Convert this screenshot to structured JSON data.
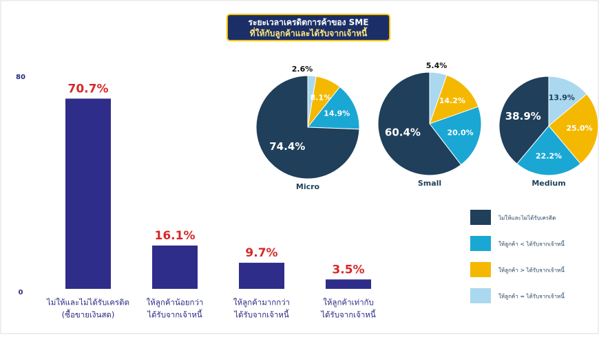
{
  "chart_data": [
    {
      "type": "bar",
      "title": [
        "ระยะเวลาเครดิตการค้าของ SME",
        "ที่ให้กับลูกค้าและได้รับจากเจ้าหนี้"
      ],
      "categories": [
        [
          "ไม่ให้และไม่ได้รับเครดิต",
          "(ซื้อขายเงินสด)"
        ],
        [
          "ให้ลูกค้าน้อยกว่า",
          "ได้รับจากเจ้าหนี้"
        ],
        [
          "ให้ลูกค้ามากกว่า",
          "ได้รับจากเจ้าหนี้"
        ],
        [
          "ให้ลูกค้าเท่ากับ",
          "ได้รับจากเจ้าหนี้"
        ]
      ],
      "values": [
        70.7,
        16.1,
        9.7,
        3.5
      ],
      "value_labels": [
        "70.7%",
        "16.1%",
        "9.7%",
        "3.5%"
      ],
      "color": "#2e2d8a",
      "label_color": "#d62828",
      "ylim": [
        0,
        80
      ],
      "yticks": [
        0,
        80
      ]
    },
    {
      "type": "pie",
      "categories": [
        "ไม่ให้และไม่ได้รับเครดิต",
        "ให้ลูกค้า < ได้รับจากเจ้าหนี้",
        "ให้ลูกค้า > ได้รับจากเจ้าหนี้",
        "ให้ลูกค้า = ได้รับจากเจ้าหนี้"
      ],
      "colors": [
        "#1f3f5b",
        "#1aa7d4",
        "#f5b800",
        "#a9d8ef"
      ],
      "series": [
        {
          "name": "Micro",
          "values": [
            74.4,
            14.9,
            8.1,
            2.6
          ],
          "value_labels": [
            "74.4%",
            "14.9%",
            "8.1%",
            "2.6%"
          ]
        },
        {
          "name": "Small",
          "values": [
            60.4,
            20.0,
            14.2,
            5.4
          ],
          "value_labels": [
            "60.4%",
            "20.0%",
            "14.2%",
            "5.4%"
          ]
        },
        {
          "name": "Medium",
          "values": [
            38.9,
            22.2,
            25.0,
            13.9
          ],
          "value_labels": [
            "38.9%",
            "22.2%",
            "25.0%",
            "13.9%"
          ]
        }
      ]
    }
  ]
}
